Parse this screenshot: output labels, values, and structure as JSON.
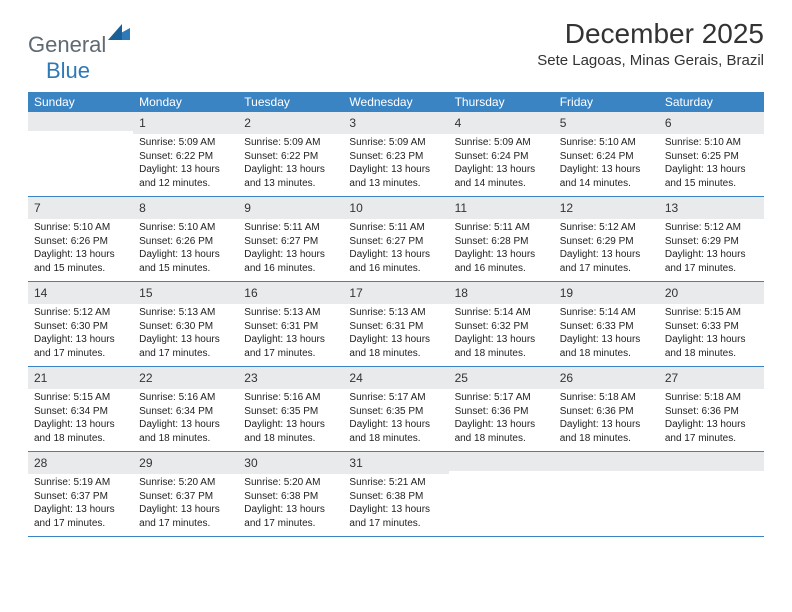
{
  "brand": {
    "text1": "General",
    "text2": "Blue",
    "text_color_gray": "#5f6a72",
    "text_color_blue": "#2e79b8",
    "icon_fill": "#2e79b8"
  },
  "title": "December 2025",
  "location": "Sete Lagoas, Minas Gerais, Brazil",
  "colors": {
    "header_bg": "#3b84c4",
    "header_text": "#ffffff",
    "daynum_bg": "#e9eaec",
    "border": "#3b84c4",
    "body_text": "#222222"
  },
  "day_names": [
    "Sunday",
    "Monday",
    "Tuesday",
    "Wednesday",
    "Thursday",
    "Friday",
    "Saturday"
  ],
  "weeks": [
    [
      {
        "n": "",
        "sr": "",
        "ss": "",
        "dl": ""
      },
      {
        "n": "1",
        "sr": "Sunrise: 5:09 AM",
        "ss": "Sunset: 6:22 PM",
        "dl": "Daylight: 13 hours and 12 minutes."
      },
      {
        "n": "2",
        "sr": "Sunrise: 5:09 AM",
        "ss": "Sunset: 6:22 PM",
        "dl": "Daylight: 13 hours and 13 minutes."
      },
      {
        "n": "3",
        "sr": "Sunrise: 5:09 AM",
        "ss": "Sunset: 6:23 PM",
        "dl": "Daylight: 13 hours and 13 minutes."
      },
      {
        "n": "4",
        "sr": "Sunrise: 5:09 AM",
        "ss": "Sunset: 6:24 PM",
        "dl": "Daylight: 13 hours and 14 minutes."
      },
      {
        "n": "5",
        "sr": "Sunrise: 5:10 AM",
        "ss": "Sunset: 6:24 PM",
        "dl": "Daylight: 13 hours and 14 minutes."
      },
      {
        "n": "6",
        "sr": "Sunrise: 5:10 AM",
        "ss": "Sunset: 6:25 PM",
        "dl": "Daylight: 13 hours and 15 minutes."
      }
    ],
    [
      {
        "n": "7",
        "sr": "Sunrise: 5:10 AM",
        "ss": "Sunset: 6:26 PM",
        "dl": "Daylight: 13 hours and 15 minutes."
      },
      {
        "n": "8",
        "sr": "Sunrise: 5:10 AM",
        "ss": "Sunset: 6:26 PM",
        "dl": "Daylight: 13 hours and 15 minutes."
      },
      {
        "n": "9",
        "sr": "Sunrise: 5:11 AM",
        "ss": "Sunset: 6:27 PM",
        "dl": "Daylight: 13 hours and 16 minutes."
      },
      {
        "n": "10",
        "sr": "Sunrise: 5:11 AM",
        "ss": "Sunset: 6:27 PM",
        "dl": "Daylight: 13 hours and 16 minutes."
      },
      {
        "n": "11",
        "sr": "Sunrise: 5:11 AM",
        "ss": "Sunset: 6:28 PM",
        "dl": "Daylight: 13 hours and 16 minutes."
      },
      {
        "n": "12",
        "sr": "Sunrise: 5:12 AM",
        "ss": "Sunset: 6:29 PM",
        "dl": "Daylight: 13 hours and 17 minutes."
      },
      {
        "n": "13",
        "sr": "Sunrise: 5:12 AM",
        "ss": "Sunset: 6:29 PM",
        "dl": "Daylight: 13 hours and 17 minutes."
      }
    ],
    [
      {
        "n": "14",
        "sr": "Sunrise: 5:12 AM",
        "ss": "Sunset: 6:30 PM",
        "dl": "Daylight: 13 hours and 17 minutes."
      },
      {
        "n": "15",
        "sr": "Sunrise: 5:13 AM",
        "ss": "Sunset: 6:30 PM",
        "dl": "Daylight: 13 hours and 17 minutes."
      },
      {
        "n": "16",
        "sr": "Sunrise: 5:13 AM",
        "ss": "Sunset: 6:31 PM",
        "dl": "Daylight: 13 hours and 17 minutes."
      },
      {
        "n": "17",
        "sr": "Sunrise: 5:13 AM",
        "ss": "Sunset: 6:31 PM",
        "dl": "Daylight: 13 hours and 18 minutes."
      },
      {
        "n": "18",
        "sr": "Sunrise: 5:14 AM",
        "ss": "Sunset: 6:32 PM",
        "dl": "Daylight: 13 hours and 18 minutes."
      },
      {
        "n": "19",
        "sr": "Sunrise: 5:14 AM",
        "ss": "Sunset: 6:33 PM",
        "dl": "Daylight: 13 hours and 18 minutes."
      },
      {
        "n": "20",
        "sr": "Sunrise: 5:15 AM",
        "ss": "Sunset: 6:33 PM",
        "dl": "Daylight: 13 hours and 18 minutes."
      }
    ],
    [
      {
        "n": "21",
        "sr": "Sunrise: 5:15 AM",
        "ss": "Sunset: 6:34 PM",
        "dl": "Daylight: 13 hours and 18 minutes."
      },
      {
        "n": "22",
        "sr": "Sunrise: 5:16 AM",
        "ss": "Sunset: 6:34 PM",
        "dl": "Daylight: 13 hours and 18 minutes."
      },
      {
        "n": "23",
        "sr": "Sunrise: 5:16 AM",
        "ss": "Sunset: 6:35 PM",
        "dl": "Daylight: 13 hours and 18 minutes."
      },
      {
        "n": "24",
        "sr": "Sunrise: 5:17 AM",
        "ss": "Sunset: 6:35 PM",
        "dl": "Daylight: 13 hours and 18 minutes."
      },
      {
        "n": "25",
        "sr": "Sunrise: 5:17 AM",
        "ss": "Sunset: 6:36 PM",
        "dl": "Daylight: 13 hours and 18 minutes."
      },
      {
        "n": "26",
        "sr": "Sunrise: 5:18 AM",
        "ss": "Sunset: 6:36 PM",
        "dl": "Daylight: 13 hours and 18 minutes."
      },
      {
        "n": "27",
        "sr": "Sunrise: 5:18 AM",
        "ss": "Sunset: 6:36 PM",
        "dl": "Daylight: 13 hours and 17 minutes."
      }
    ],
    [
      {
        "n": "28",
        "sr": "Sunrise: 5:19 AM",
        "ss": "Sunset: 6:37 PM",
        "dl": "Daylight: 13 hours and 17 minutes."
      },
      {
        "n": "29",
        "sr": "Sunrise: 5:20 AM",
        "ss": "Sunset: 6:37 PM",
        "dl": "Daylight: 13 hours and 17 minutes."
      },
      {
        "n": "30",
        "sr": "Sunrise: 5:20 AM",
        "ss": "Sunset: 6:38 PM",
        "dl": "Daylight: 13 hours and 17 minutes."
      },
      {
        "n": "31",
        "sr": "Sunrise: 5:21 AM",
        "ss": "Sunset: 6:38 PM",
        "dl": "Daylight: 13 hours and 17 minutes."
      },
      {
        "n": "",
        "sr": "",
        "ss": "",
        "dl": ""
      },
      {
        "n": "",
        "sr": "",
        "ss": "",
        "dl": ""
      },
      {
        "n": "",
        "sr": "",
        "ss": "",
        "dl": ""
      }
    ]
  ]
}
